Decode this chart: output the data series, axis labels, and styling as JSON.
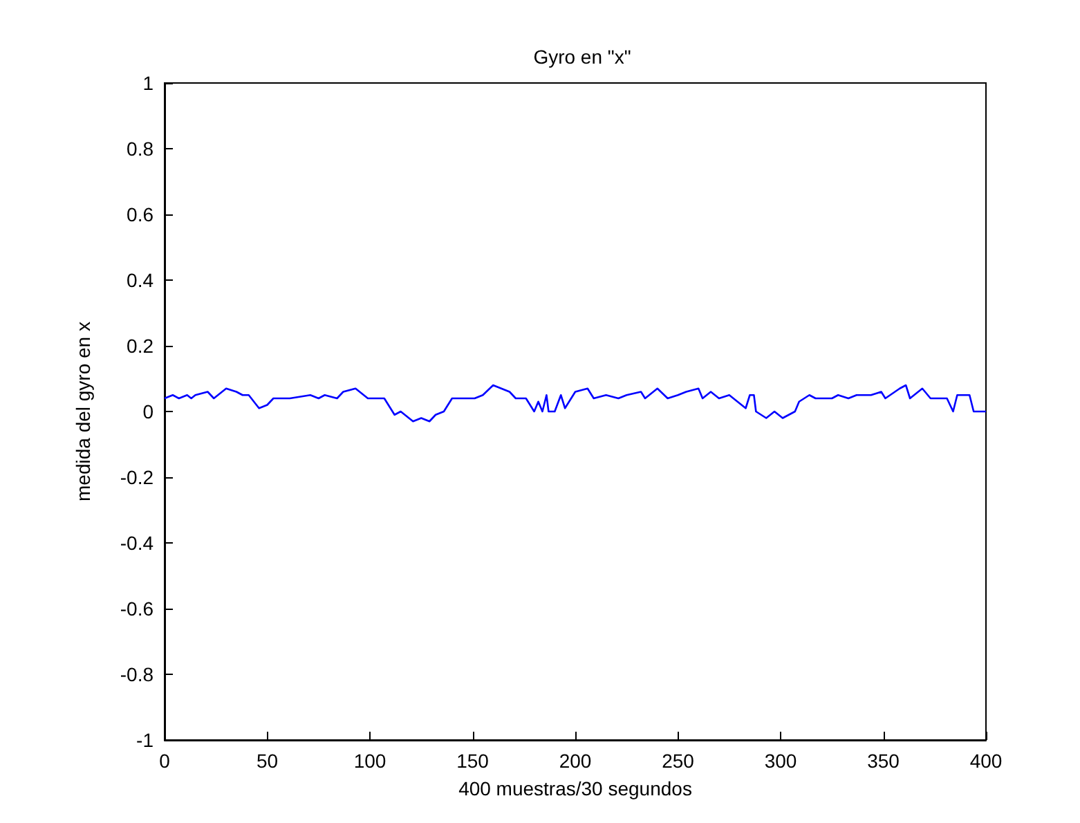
{
  "chart_data": {
    "type": "line",
    "title": "Gyro en \"x\"",
    "xlabel": "400 muestras/30 segundos",
    "ylabel": "medida del gyro en x",
    "xlim": [
      0,
      400
    ],
    "xticks": [
      0,
      50,
      100,
      150,
      200,
      250,
      300,
      350,
      400
    ],
    "ylim": [
      -1,
      1
    ],
    "yticks": [
      -1,
      -0.8,
      -0.6,
      -0.4,
      -0.2,
      0,
      0.2,
      0.4,
      0.6,
      0.8,
      1
    ],
    "marker": "none",
    "line_style": "solid",
    "x": [
      0,
      4,
      7,
      11,
      13,
      15,
      21,
      24,
      30,
      35,
      38,
      41,
      46,
      50,
      53,
      61,
      71,
      75,
      78,
      84,
      87,
      93,
      99,
      107,
      112,
      115,
      121,
      125,
      129,
      132,
      136,
      140,
      151,
      155,
      160,
      168,
      171,
      176,
      180,
      182,
      184,
      186,
      187,
      190,
      193,
      195,
      200,
      206,
      209,
      215,
      221,
      225,
      232,
      234,
      240,
      245,
      250,
      254,
      260,
      262,
      266,
      270,
      275,
      277,
      283,
      285,
      287,
      288,
      293,
      297,
      301,
      307,
      309,
      314,
      317,
      325,
      328,
      333,
      337,
      344,
      349,
      351,
      358,
      361,
      363,
      369,
      373,
      381,
      384,
      386,
      392,
      394,
      400
    ],
    "series": [
      {
        "color": "#0000ff",
        "values": [
          0.04,
          0.05,
          0.04,
          0.05,
          0.04,
          0.05,
          0.06,
          0.04,
          0.07,
          0.06,
          0.05,
          0.05,
          0.01,
          0.02,
          0.04,
          0.04,
          0.05,
          0.04,
          0.05,
          0.04,
          0.06,
          0.07,
          0.04,
          0.04,
          -0.01,
          0,
          -0.03,
          -0.02,
          -0.03,
          -0.01,
          0,
          0.04,
          0.04,
          0.05,
          0.08,
          0.06,
          0.04,
          0.04,
          0,
          0.03,
          0,
          0.05,
          0,
          0,
          0.05,
          0.01,
          0.06,
          0.07,
          0.04,
          0.05,
          0.04,
          0.05,
          0.06,
          0.04,
          0.07,
          0.04,
          0.05,
          0.06,
          0.07,
          0.04,
          0.06,
          0.04,
          0.05,
          0.04,
          0.01,
          0.05,
          0.05,
          0,
          -0.02,
          0,
          -0.02,
          0,
          0.03,
          0.05,
          0.04,
          0.04,
          0.05,
          0.04,
          0.05,
          0.05,
          0.06,
          0.04,
          0.07,
          0.08,
          0.04,
          0.07,
          0.04,
          0.04,
          0,
          0.05,
          0.05,
          0,
          0
        ]
      }
    ]
  }
}
